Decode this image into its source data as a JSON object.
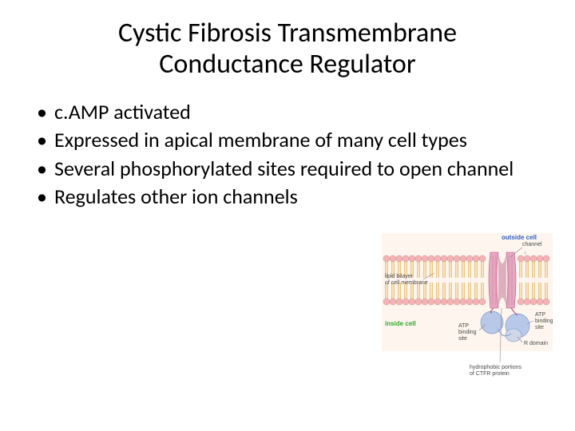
{
  "title_line1": "Cystic Fibrosis Transmembrane",
  "title_line2": "Conductance Regulator",
  "bullets": [
    "c.AMP activated",
    "Expressed in apical membrane of many cell types",
    "Several phosphorylated sites required to open channel",
    "Regulates other ion channels"
  ],
  "diagram": {
    "labels": {
      "outside": "outside cell",
      "inside": "inside cell",
      "bilayer_l1": "lipid bilayer",
      "bilayer_l2": "of cell membrane",
      "channel": "channel",
      "atp1_l1": "ATP",
      "atp1_l2": "binding",
      "atp1_l3": "site",
      "atp2_l1": "ATP",
      "atp2_l2": "binding",
      "atp2_l3": "site",
      "rdomain": "R domain",
      "hydro_l1": "hydrophobic portions",
      "hydro_l2": "of CTFR protein"
    },
    "colors": {
      "head": "#f2b4b4",
      "head_stroke": "#d18a8a",
      "tail": "#e8c27a",
      "channel_fill": "#e6a8c0",
      "channel_inner": "#b45a84",
      "nbd": "#b8c8e8",
      "nbd_stroke": "#7d97c9",
      "rdomain": "#cfd8e8",
      "label_green": "#2da82d",
      "label_blue": "#2f62c9",
      "label_dark": "#4a4a4a",
      "line": "#8a8a8a",
      "bg": "#fef6ee"
    },
    "font": {
      "label_small": 7,
      "label_med": 8
    }
  }
}
